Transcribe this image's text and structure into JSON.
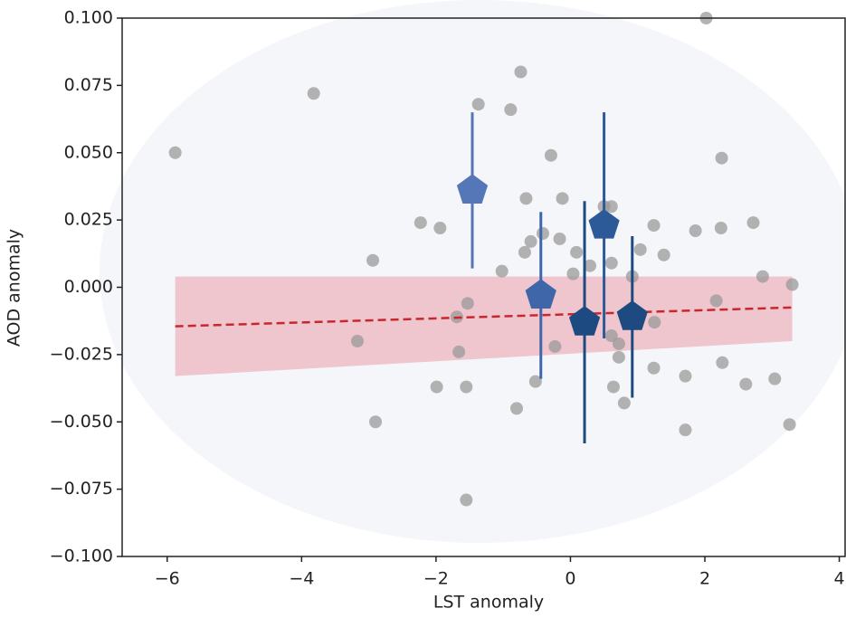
{
  "chart_data": {
    "type": "scatter",
    "xlabel": "LST anomaly",
    "ylabel": "AOD anomaly",
    "xlim": [
      -6.67,
      4.1
    ],
    "ylim": [
      -0.1,
      0.1
    ],
    "xticks": [
      {
        "value": -6,
        "label": "−6"
      },
      {
        "value": -4,
        "label": "−4"
      },
      {
        "value": -2,
        "label": "−2"
      },
      0,
      2,
      4
    ],
    "yticks": [
      {
        "value": -0.1,
        "label": "−0.100"
      },
      {
        "value": -0.075,
        "label": "−0.075"
      },
      {
        "value": -0.05,
        "label": "−0.050"
      },
      {
        "value": -0.025,
        "label": "−0.025"
      },
      {
        "value": 0,
        "label": "0.000"
      },
      {
        "value": 0.025,
        "label": "0.025"
      },
      {
        "value": 0.05,
        "label": "0.050"
      },
      {
        "value": 0.075,
        "label": "0.075"
      },
      {
        "value": 0.1,
        "label": "0.100"
      }
    ],
    "points": {
      "color": "#9a9a9a",
      "x": [
        -5.88,
        -3.82,
        -1.37,
        -0.74,
        -0.89,
        -0.29,
        -2.23,
        -1.94,
        -0.66,
        -0.12,
        -0.41,
        -0.59,
        -0.68,
        -0.16,
        -1.02,
        0.09,
        0.29,
        0.04,
        0.61,
        0.61,
        0.5,
        0.92,
        1.04,
        1.24,
        1.39,
        1.86,
        2.24,
        2.25,
        2.02,
        2.72,
        2.86,
        3.3,
        2.17,
        -2.94,
        -3.17,
        -2.9,
        -1.99,
        -1.55,
        -1.66,
        -1.55,
        -0.8,
        -0.52,
        -0.23,
        0.61,
        0.72,
        0.72,
        0.64,
        0.8,
        1.24,
        1.25,
        1.71,
        1.71,
        2.26,
        2.61,
        3.04,
        3.26,
        -1.53,
        -1.69
      ],
      "y": [
        0.05,
        0.072,
        0.068,
        0.08,
        0.066,
        0.049,
        0.024,
        0.022,
        0.033,
        0.033,
        0.02,
        0.017,
        0.013,
        0.018,
        0.006,
        0.013,
        0.008,
        0.005,
        0.009,
        0.03,
        0.03,
        0.004,
        0.014,
        0.023,
        0.012,
        0.021,
        0.022,
        0.048,
        0.1,
        0.024,
        0.004,
        0.001,
        -0.005,
        0.01,
        -0.02,
        -0.05,
        -0.037,
        -0.037,
        -0.024,
        -0.079,
        -0.045,
        -0.035,
        -0.022,
        -0.018,
        -0.021,
        -0.026,
        -0.037,
        -0.043,
        -0.03,
        -0.013,
        -0.033,
        -0.053,
        -0.028,
        -0.036,
        -0.034,
        -0.051,
        -0.006,
        -0.011
      ]
    },
    "highlighted": {
      "x": [
        -1.46,
        -0.44,
        0.21,
        0.5,
        0.92
      ],
      "y": [
        0.036,
        -0.003,
        -0.013,
        0.023,
        -0.011
      ],
      "yerr": [
        0.029,
        0.031,
        0.045,
        0.042,
        0.03
      ],
      "colors": [
        "#5577b8",
        "#3f66a8",
        "#1d4a80",
        "#2c5a98",
        "#1d4a80"
      ]
    },
    "fit": {
      "color": "#c8282d",
      "band_color": "#e88a9a",
      "x": [
        -5.88,
        3.3
      ],
      "y": [
        -0.0145,
        -0.0075
      ],
      "upper": [
        0.004,
        0.004
      ],
      "lower": [
        -0.033,
        -0.02
      ]
    }
  }
}
